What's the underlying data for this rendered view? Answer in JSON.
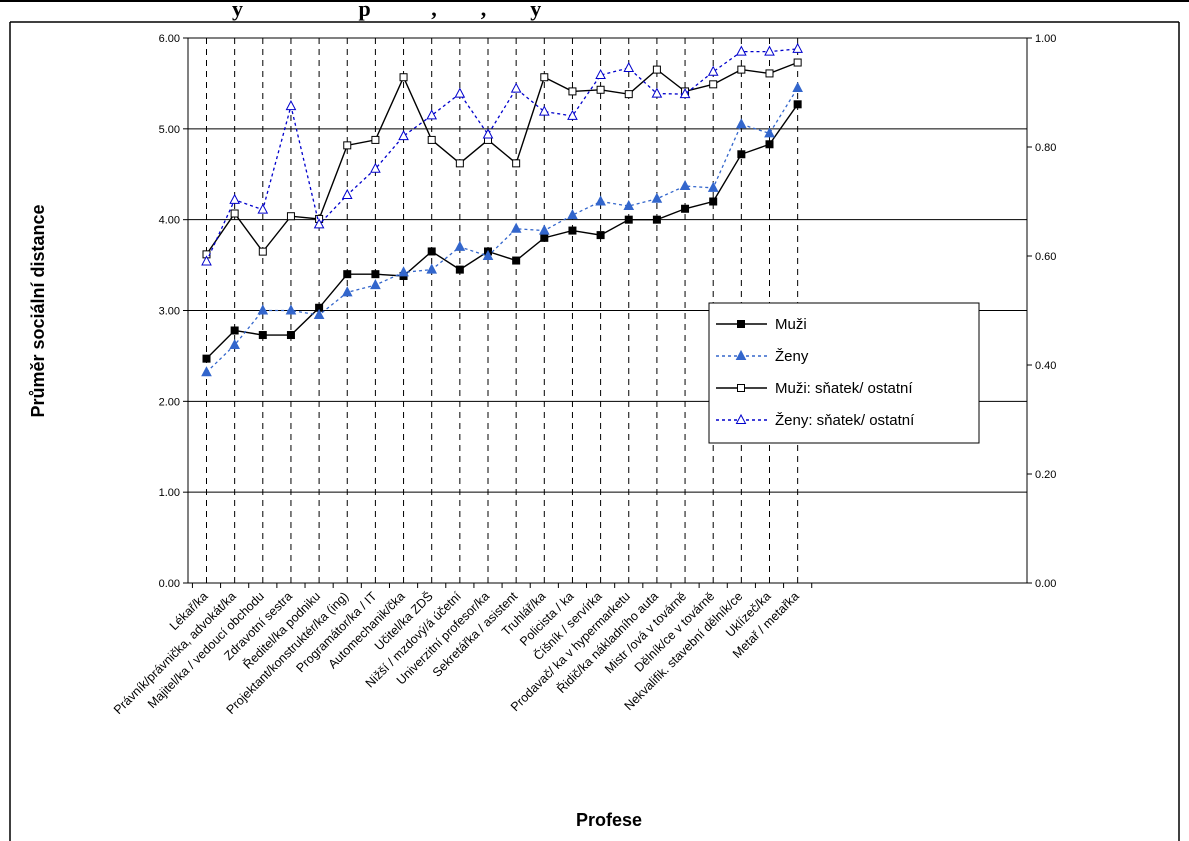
{
  "header": {
    "title_fragment": "y                     p           ,        ,        y"
  },
  "chart_data": {
    "type": "line",
    "title": "",
    "xlabel": "Profese",
    "ylabel": "Průměr sociální distance",
    "ylim": [
      0,
      6
    ],
    "y2lim": [
      0,
      1
    ],
    "yticks": [
      "0.00",
      "1.00",
      "2.00",
      "3.00",
      "4.00",
      "5.00",
      "6.00"
    ],
    "y2ticks": [
      "0.00",
      "0.20",
      "0.40",
      "0.60",
      "0.80",
      "1.00"
    ],
    "grid": "horizontal major and dashed vertical per category",
    "legend_position": "right-middle",
    "categories": [
      "Lékař/ka",
      "Právník/právnička, advokát/ka",
      "Majitel/ka / vedoucí obchodu",
      "Zdravotní sestra",
      "Ředitel/ka podniku",
      "Projektant/konstruktér/ka (ing)",
      "Programátor/ka / IT",
      "Automechanik/čka",
      "Učitel/ka ZDŠ",
      "Nižší / mzdový/á účetní",
      "Univerzitní profesor/ka",
      "Sekretářka / asistent",
      "Truhlář/ka",
      "Policista / ka",
      "Číšník / servírka",
      "Prodavač/ ka v hypermarketu",
      "Řidič/ka nákladního auta",
      "Mistr /ová v továrně",
      "Dělník/ce v továrně",
      "Nekvalifik. stavební dělník/ce",
      "Uklízeč/ka",
      "Metař / metařka"
    ],
    "series": [
      {
        "name": "Muži",
        "axis": "left",
        "color": "#000000",
        "style": "solid",
        "marker": "filled-square",
        "values": [
          2.47,
          2.78,
          2.73,
          2.73,
          3.03,
          3.4,
          3.4,
          3.38,
          3.65,
          3.45,
          3.65,
          3.55,
          3.8,
          3.88,
          3.83,
          4.0,
          4.0,
          4.12,
          4.2,
          4.72,
          4.83,
          5.27
        ]
      },
      {
        "name": "Ženy",
        "axis": "left",
        "color": "#3366cc",
        "style": "dotted",
        "marker": "filled-triangle",
        "values": [
          2.32,
          2.62,
          3.0,
          3.0,
          2.95,
          3.2,
          3.28,
          3.42,
          3.45,
          3.7,
          3.6,
          3.9,
          3.88,
          4.05,
          4.2,
          4.15,
          4.23,
          4.37,
          4.35,
          5.05,
          4.95,
          5.45
        ]
      },
      {
        "name": "Muži: sňatek/ ostatní",
        "axis": "right",
        "color": "#000000",
        "style": "solid",
        "marker": "hollow-square",
        "values": [
          0.603,
          0.678,
          0.608,
          0.673,
          0.668,
          0.803,
          0.813,
          0.928,
          0.813,
          0.77,
          0.813,
          0.77,
          0.928,
          0.902,
          0.905,
          0.897,
          0.942,
          0.902,
          0.915,
          0.942,
          0.935,
          0.955
        ]
      },
      {
        "name": "Ženy: sňatek/ ostatní",
        "axis": "right",
        "color": "#0000cc",
        "style": "dotted",
        "marker": "hollow-triangle",
        "values": [
          0.59,
          0.703,
          0.685,
          0.875,
          0.658,
          0.712,
          0.76,
          0.82,
          0.858,
          0.898,
          0.823,
          0.907,
          0.865,
          0.857,
          0.932,
          0.945,
          0.898,
          0.897,
          0.938,
          0.975,
          0.975,
          0.98
        ]
      }
    ]
  }
}
